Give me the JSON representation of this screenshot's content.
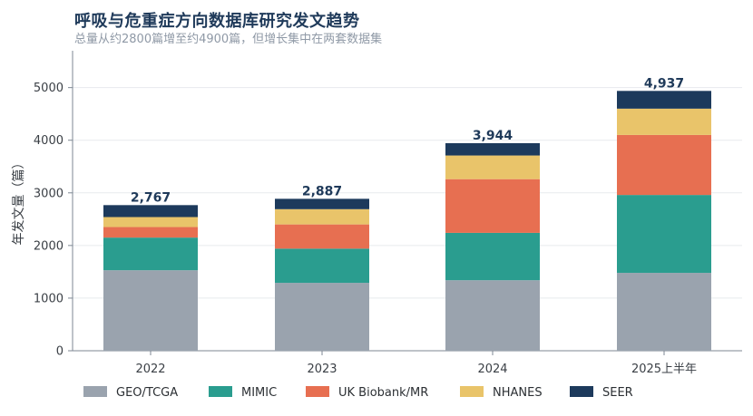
{
  "title": "呼吸与危重症方向数据库研究发文趋势",
  "subtitle": "总量从约2800篇增至约4900篇，但增长集中在两套数据集",
  "chart_data": {
    "type": "bar",
    "stacked": true,
    "categories": [
      "2022",
      "2023",
      "2024",
      "2025上半年"
    ],
    "ylabel": "年发文量（篇）",
    "xlabel": "",
    "ylim": [
      0,
      5700
    ],
    "yticks": [
      0,
      1000,
      2000,
      3000,
      4000,
      5000
    ],
    "grid": "horizontal",
    "legend_position": "bottom",
    "series": [
      {
        "name": "GEO/TCGA",
        "color": "#9aa3ae",
        "values": [
          1530,
          1290,
          1340,
          1480
        ]
      },
      {
        "name": "MIMIC",
        "color": "#2a9d8f",
        "values": [
          620,
          650,
          900,
          1480
        ]
      },
      {
        "name": "UK Biobank/MR",
        "color": "#e76f51",
        "values": [
          200,
          460,
          1020,
          1140
        ]
      },
      {
        "name": "NHANES",
        "color": "#e9c46a",
        "values": [
          190,
          290,
          450,
          500
        ]
      },
      {
        "name": "SEER",
        "color": "#1d3a5c",
        "values": [
          227,
          197,
          234,
          337
        ]
      }
    ],
    "totals": [
      "2,767",
      "2,887",
      "3,944",
      "4,937"
    ]
  }
}
